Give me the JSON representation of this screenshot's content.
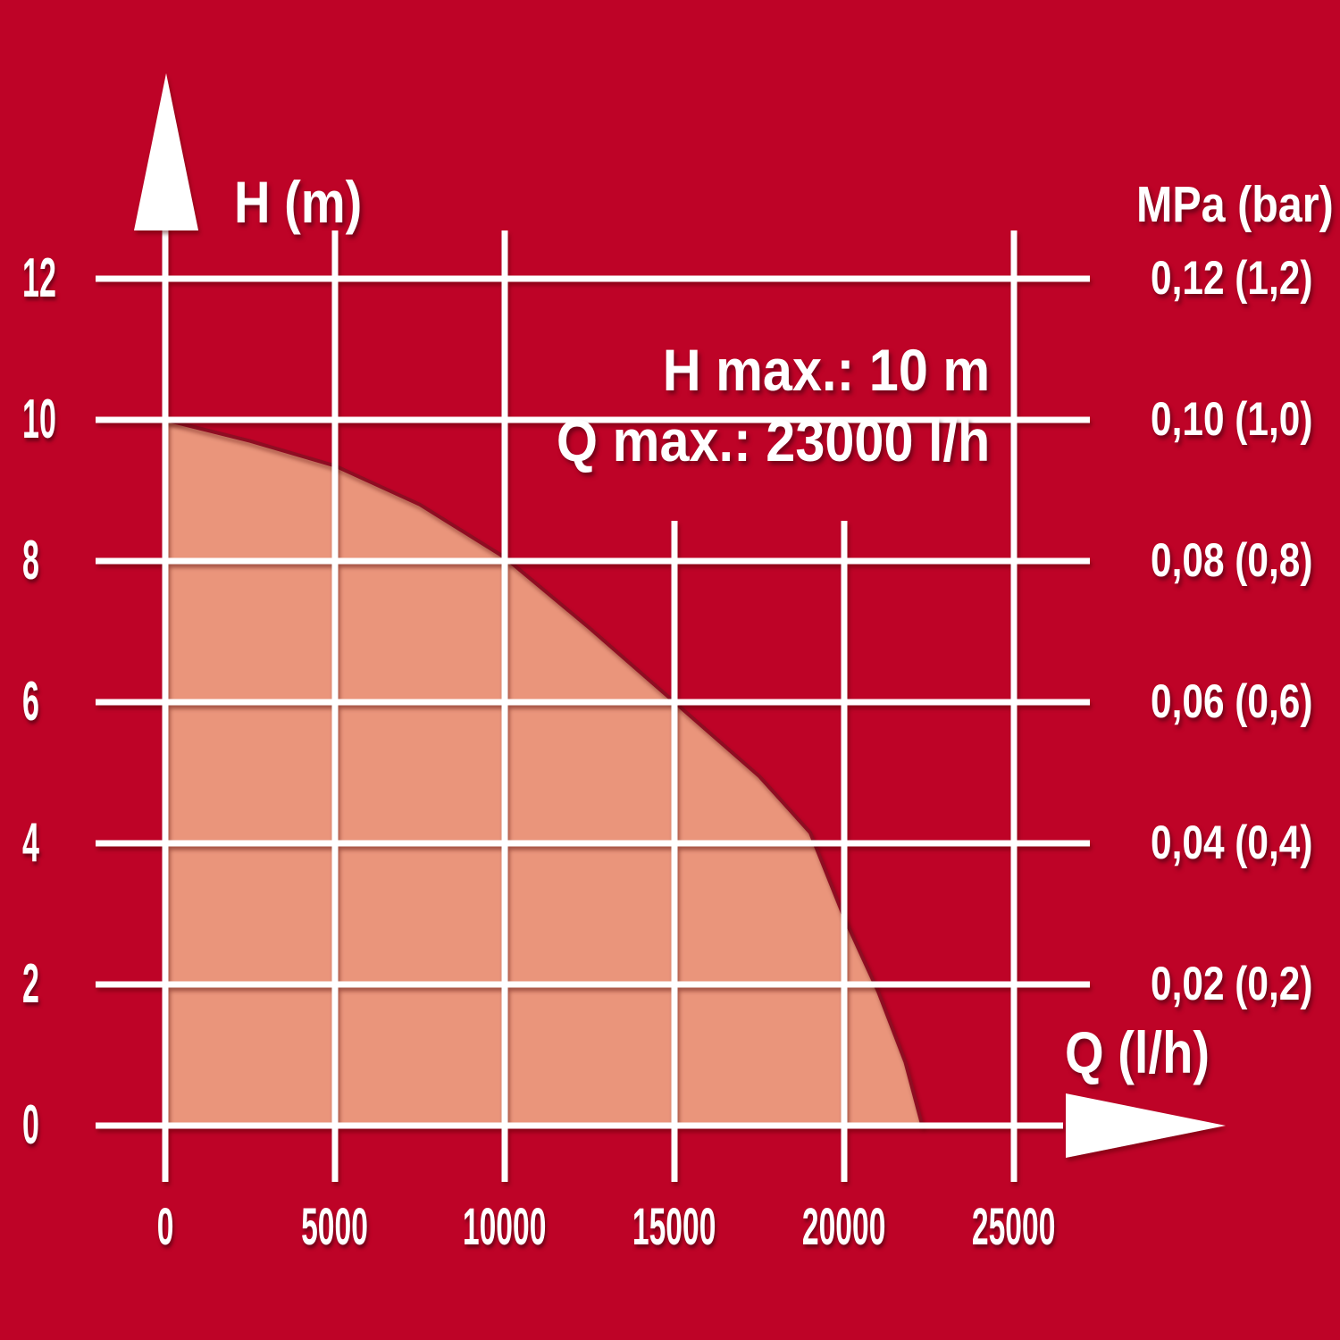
{
  "chart_data": {
    "type": "area",
    "title": "",
    "annotation_lines": [
      "H max.: 10 m",
      "Q max.: 23000 l/h"
    ],
    "h_max_m": 10,
    "q_max_lh": 23000,
    "x_axis": {
      "label": "Q (l/h)",
      "ticks": [
        0,
        5000,
        10000,
        15000,
        20000,
        25000
      ],
      "range": [
        0,
        26500
      ],
      "short_top_gridlines": [
        15000,
        20000
      ]
    },
    "y_axis_left": {
      "label": "H (m)",
      "ticks": [
        0,
        2,
        4,
        6,
        8,
        10,
        12
      ],
      "range": [
        0,
        13.5
      ]
    },
    "y_axis_right": {
      "label": "MPa (bar)",
      "tick_labels": [
        "0,12 (1,2)",
        "0,10 (1,0)",
        "0,08 (0,8)",
        "0,06 (0,6)",
        "0,04 (0,4)",
        "0,02 (0,2)"
      ],
      "tick_values_h": [
        12,
        10,
        8,
        6,
        4,
        2
      ]
    },
    "series": [
      {
        "name": "pump-operating-curve",
        "points_q_h": [
          [
            0,
            10.0
          ],
          [
            2500,
            9.7
          ],
          [
            5000,
            9.35
          ],
          [
            7500,
            8.8
          ],
          [
            10000,
            8.05
          ],
          [
            12500,
            7.05
          ],
          [
            15000,
            6.0
          ],
          [
            17500,
            4.95
          ],
          [
            19000,
            4.15
          ],
          [
            20000,
            2.95
          ],
          [
            21000,
            1.9
          ],
          [
            21800,
            0.9
          ],
          [
            22300,
            0.0
          ]
        ]
      }
    ],
    "grid": true,
    "legend": "none",
    "colors": {
      "background": "#BE0327",
      "area_fill": "#EA957B",
      "curve_edge": "#8E0A24",
      "grid_lines": "#FFFFFF",
      "text": "#FFFFFF"
    }
  }
}
